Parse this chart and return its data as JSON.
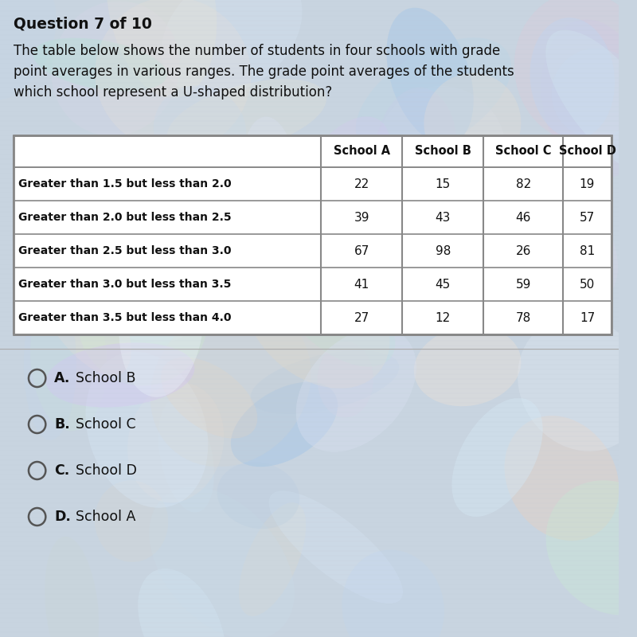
{
  "question_header": "Question 7 of 10",
  "question_text": "The table below shows the number of students in four schools with grade\npoint averages in various ranges. The grade point averages of the students\nwhich school represent a U-shaped distribution?",
  "col_headers": [
    "",
    "School A",
    "School B",
    "School C",
    "School D"
  ],
  "row_labels": [
    "Greater than 1.5 but less than 2.0",
    "Greater than 2.0 but less than 2.5",
    "Greater than 2.5 but less than 3.0",
    "Greater than 3.0 but less than 3.5",
    "Greater than 3.5 but less than 4.0"
  ],
  "table_data": [
    [
      22,
      15,
      82,
      19
    ],
    [
      39,
      43,
      46,
      57
    ],
    [
      67,
      98,
      26,
      81
    ],
    [
      41,
      45,
      59,
      50
    ],
    [
      27,
      12,
      78,
      17
    ]
  ],
  "answer_options": [
    {
      "letter": "A.",
      "text": "School B"
    },
    {
      "letter": "B.",
      "text": "School C"
    },
    {
      "letter": "C.",
      "text": "School D"
    },
    {
      "letter": "D.",
      "text": "School A"
    }
  ],
  "bg_color_base": "#c8d4e0",
  "table_bg": "#ffffff",
  "border_color": "#888888",
  "text_color": "#111111"
}
